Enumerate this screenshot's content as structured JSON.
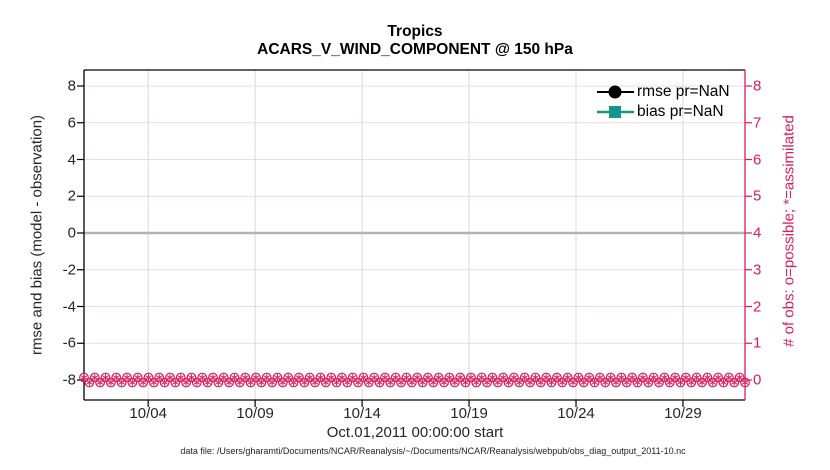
{
  "colors": {
    "pink": "#d81e5e",
    "teal": "#14988b",
    "zero_line": "#b3b3b3",
    "grid_gray": "#d9d9d9",
    "grid_pink": "#f4d8e2",
    "axis_black": "#000000",
    "tick_text": "#262626"
  },
  "footer": {
    "data_file": "data file: /Users/gharamti/Documents/NCAR/Reanalysis/~/Documents/NCAR/Reanalysis/webpub/obs_diag_output_2011-10.nc"
  },
  "chart_data": {
    "type": "line",
    "title": "Tropics",
    "subtitle": "ACARS_V_WIND_COMPONENT @ 150 hPa",
    "xlabel": "Oct.01,2011 00:00:00 start",
    "x_tick_labels": [
      "10/04",
      "10/09",
      "10/14",
      "10/19",
      "10/24",
      "10/29"
    ],
    "x_tick_days": [
      3,
      8,
      13,
      18,
      23,
      28
    ],
    "x_range_days": [
      0,
      30.9
    ],
    "left_axis": {
      "label": "rmse and bias (model - observation)",
      "ticks": [
        8,
        6,
        4,
        2,
        0,
        -2,
        -4,
        -6,
        -8
      ],
      "lim": [
        -8.9,
        8.9
      ]
    },
    "right_axis": {
      "label": "# of obs: o=possible; *=assimilated",
      "ticks": [
        8,
        7,
        6,
        5,
        4,
        3,
        2,
        1,
        0
      ],
      "lim": [
        -0.45,
        8.45
      ]
    },
    "series": [
      {
        "name": "rmse pr=NaN",
        "marker": "circle",
        "color": "#000000",
        "axis": "left",
        "values": "NaN"
      },
      {
        "name": "bias pr=NaN",
        "marker": "square",
        "color": "#14988b",
        "axis": "left",
        "values": "NaN"
      },
      {
        "name": "# obs possible (o)",
        "marker": "circle-outline",
        "color": "#d81e5e",
        "axis": "right",
        "constant_value": 0
      },
      {
        "name": "# obs assimilated (*)",
        "marker": "asterisk",
        "color": "#d81e5e",
        "axis": "right",
        "constant_value": 0
      }
    ],
    "zero_reference_line": {
      "y": 0,
      "color": "#b3b3b3"
    },
    "n_obs_markers": 124,
    "grid": true,
    "legend_position": "top-right-inside"
  }
}
